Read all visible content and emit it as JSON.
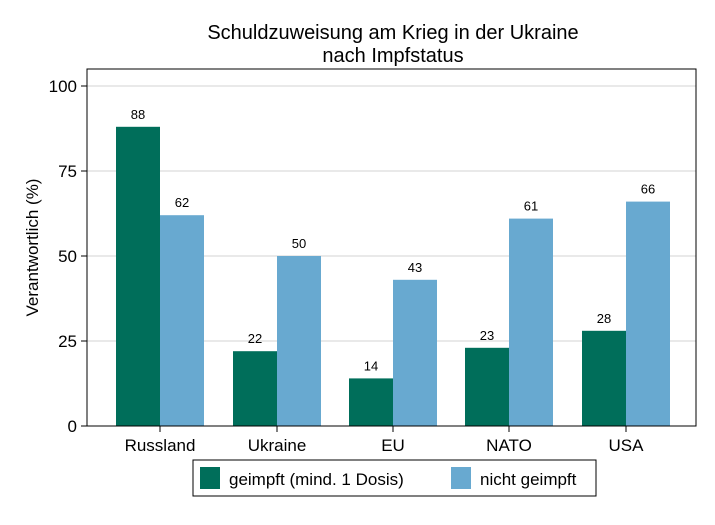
{
  "chart_data": {
    "type": "bar",
    "title": "Schuldzuweisung am Krieg in der Ukraine",
    "subtitle": "nach Impfstatus",
    "xlabel": "",
    "ylabel": "Verantwortlich (%)",
    "ylim": [
      0,
      100
    ],
    "yticks": [
      0,
      25,
      50,
      75,
      100
    ],
    "categories": [
      "Russland",
      "Ukraine",
      "EU",
      "NATO",
      "USA"
    ],
    "series": [
      {
        "name": "geimpft (mind. 1 Dosis)",
        "values": [
          88,
          22,
          14,
          23,
          28
        ],
        "color": "#006e5a"
      },
      {
        "name": "nicht geimpft",
        "values": [
          62,
          50,
          43,
          61,
          66
        ],
        "color": "#68a9d0"
      }
    ],
    "grid": true,
    "legend_position": "bottom"
  }
}
